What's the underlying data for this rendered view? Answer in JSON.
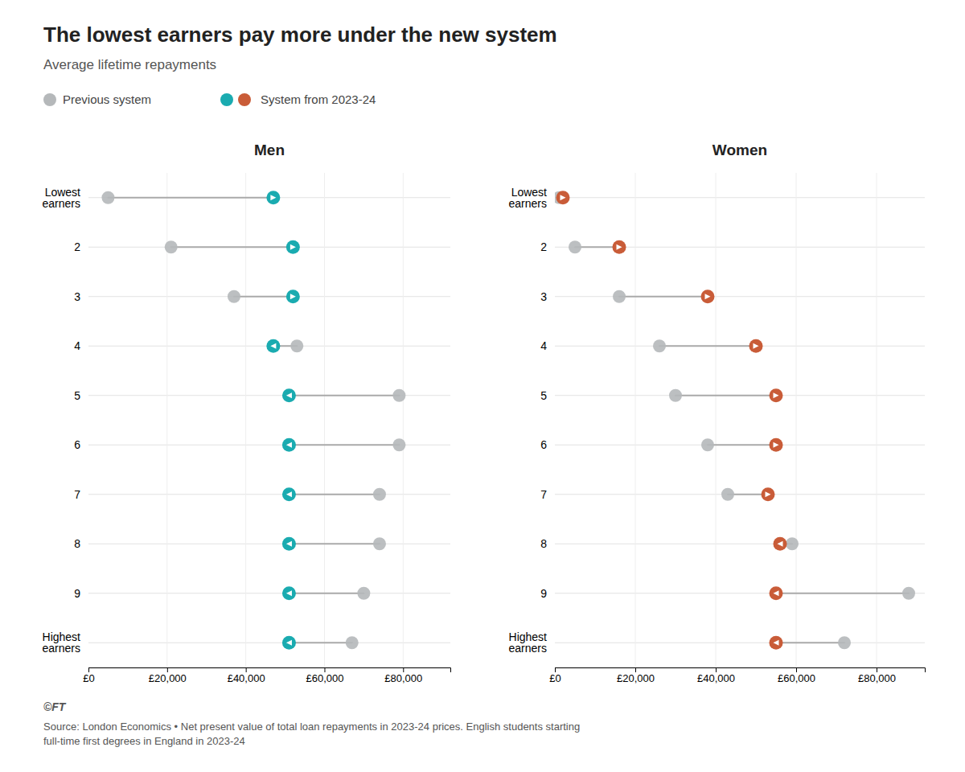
{
  "title": "The lowest earners pay more under the new system",
  "subtitle": "Average lifetime repayments",
  "annotations": [
    "©FT",
    "Source: London Economics • Net present value of total loan repayments in 2023-24 prices. English students starting\nfull-time first degrees in England in 2023-24"
  ],
  "chart_data": [
    {
      "type": "dumbbell",
      "title": "Men",
      "orientation": "horizontal",
      "grid": true,
      "categories": [
        "Lowest\nearners",
        "2",
        "3",
        "4",
        "5",
        "6",
        "7",
        "8",
        "9",
        "Highest\nearners"
      ],
      "series": [
        {
          "name": "Previous system",
          "color": "#b5b8ba",
          "values": [
            5000,
            21000,
            37000,
            53000,
            79000,
            79000,
            74000,
            74000,
            70000,
            67000
          ]
        },
        {
          "name": "System from 2023-24",
          "color": "#1aabb0",
          "values": [
            47000,
            52000,
            52000,
            47000,
            51000,
            51000,
            51000,
            51000,
            51000,
            51000
          ]
        }
      ],
      "xlim": [
        0,
        92000
      ],
      "xticks": [
        {
          "value": 0,
          "label": "£0"
        },
        {
          "value": 20000,
          "label": "£20,000"
        },
        {
          "value": 40000,
          "label": "£40,000"
        },
        {
          "value": 60000,
          "label": "£60,000"
        },
        {
          "value": 80000,
          "label": "£80,000"
        }
      ]
    },
    {
      "type": "dumbbell",
      "title": "Women",
      "orientation": "horizontal",
      "grid": true,
      "categories": [
        "Lowest\nearners",
        "2",
        "3",
        "4",
        "5",
        "6",
        "7",
        "8",
        "9",
        "Highest\nearners"
      ],
      "series": [
        {
          "name": "Previous system",
          "color": "#b5b8ba",
          "values": [
            1000,
            5000,
            16000,
            26000,
            30000,
            38000,
            43000,
            59000,
            88000,
            72000
          ]
        },
        {
          "name": "System from 2023-24",
          "color": "#c95c38",
          "values": [
            2000,
            16000,
            38000,
            50000,
            55000,
            55000,
            53000,
            56000,
            55000,
            55000
          ]
        }
      ],
      "xlim": [
        0,
        92000
      ],
      "xticks": [
        {
          "value": 0,
          "label": "£0"
        },
        {
          "value": 20000,
          "label": "£20,000"
        },
        {
          "value": 40000,
          "label": "£40,000"
        },
        {
          "value": 60000,
          "label": "£60,000"
        },
        {
          "value": 80000,
          "label": "£80,000"
        }
      ]
    }
  ]
}
